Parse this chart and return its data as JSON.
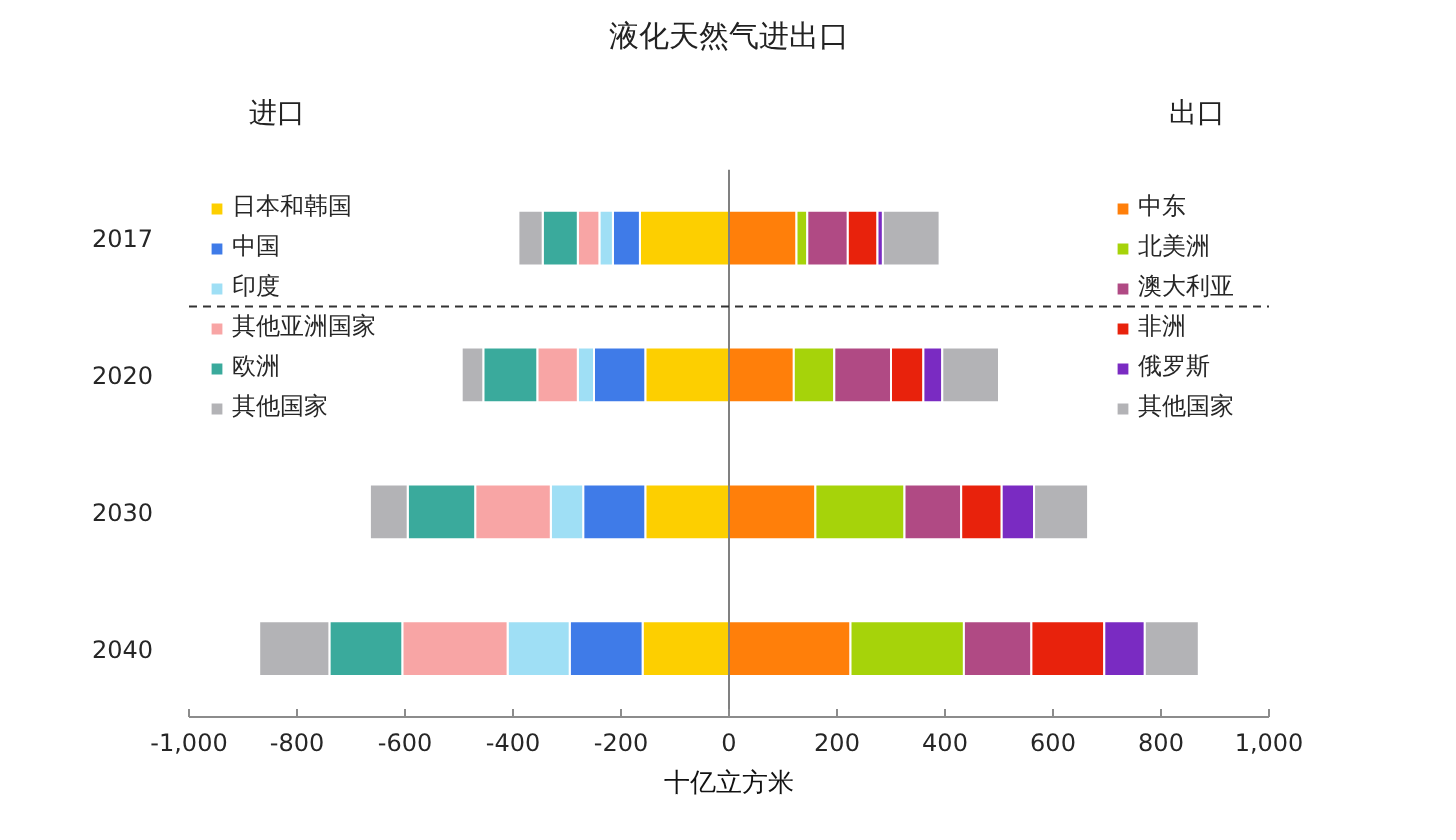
{
  "chart_data": {
    "type": "bar",
    "orientation": "horizontal",
    "stacked": true,
    "title": "液化天然气进出口",
    "xlabel": "十亿立方米",
    "annotations": [
      "进口",
      "出口"
    ],
    "categories": [
      "2017",
      "2020",
      "2030",
      "2040"
    ],
    "series": [
      {
        "name": "日本和韩国",
        "color": "#fdcf00",
        "values": [
          -165,
          -155,
          -155,
          -160
        ]
      },
      {
        "name": "中国",
        "color": "#3f7be8",
        "values": [
          -50,
          -95,
          -115,
          -135
        ]
      },
      {
        "name": "印度",
        "color": "#9fdff5",
        "values": [
          -25,
          -30,
          -60,
          -115
        ]
      },
      {
        "name": "其他亚洲国家",
        "color": "#f8a5a5",
        "values": [
          -40,
          -75,
          -140,
          -195
        ]
      },
      {
        "name": "欧洲",
        "color": "#3aaa9c",
        "values": [
          -65,
          -100,
          -125,
          -135
        ]
      },
      {
        "name": "其他国家",
        "color": "#b3b3b6",
        "values": [
          -45,
          -40,
          -70,
          -130
        ]
      },
      {
        "name": "中东",
        "color": "#ff7f0a",
        "values": [
          125,
          120,
          160,
          225
        ]
      },
      {
        "name": "北美洲",
        "color": "#a6d30a",
        "values": [
          20,
          75,
          165,
          210
        ]
      },
      {
        "name": "澳大利亚",
        "color": "#b04a84",
        "values": [
          75,
          105,
          105,
          125
        ]
      },
      {
        "name": "非洲",
        "color": "#e8220c",
        "values": [
          55,
          60,
          75,
          135
        ]
      },
      {
        "name": "俄罗斯",
        "color": "#7a2bc2",
        "values": [
          10,
          35,
          60,
          75
        ]
      },
      {
        "name": "其他国家",
        "color": "#b3b3b6",
        "values": [
          105,
          105,
          100,
          100
        ]
      }
    ],
    "xlim": [
      -1000,
      1000
    ],
    "xticks": [
      {
        "value": -1000,
        "label": "-1,000"
      },
      -800,
      -600,
      -400,
      -200,
      0,
      200,
      400,
      600,
      800,
      {
        "value": 1000,
        "label": "1,000"
      }
    ],
    "grid": false,
    "legend": "top",
    "ref_lines": [
      {
        "axis": "x",
        "value": 0,
        "color": "#808080"
      },
      {
        "axis": "y",
        "value": "2017",
        "color": "#333333",
        "line_style": "dashed"
      }
    ]
  }
}
